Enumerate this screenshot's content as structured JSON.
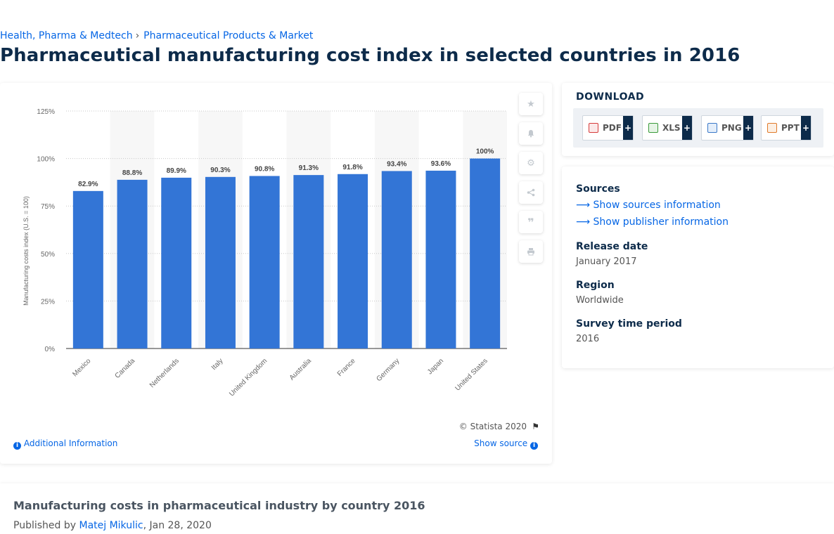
{
  "breadcrumb": {
    "items": [
      "Health, Pharma & Medtech",
      "Pharmaceutical Products & Market"
    ],
    "separator": "›"
  },
  "page_title": "Pharmaceutical manufacturing cost index in selected countries in 2016",
  "chart_data": {
    "type": "bar",
    "categories": [
      "Mexico",
      "Canada",
      "Netherlands",
      "Italy",
      "United Kingdom",
      "Australia",
      "France",
      "Germany",
      "Japan",
      "United States"
    ],
    "values": [
      82.9,
      88.8,
      89.9,
      90.3,
      90.8,
      91.3,
      91.8,
      93.4,
      93.6,
      100
    ],
    "value_labels": [
      "82.9%",
      "88.8%",
      "89.9%",
      "90.3%",
      "90.8%",
      "91.3%",
      "91.8%",
      "93.4%",
      "93.6%",
      "100%"
    ],
    "ylabel": "Manufacturing costs index (U.S. = 100)",
    "ylim": [
      0,
      125
    ],
    "yticks": [
      0,
      25,
      50,
      75,
      100,
      125
    ],
    "ytick_labels": [
      "0%",
      "25%",
      "50%",
      "75%",
      "100%",
      "125%"
    ],
    "grid": true,
    "bar_color": "#3375d6"
  },
  "chart_footer": {
    "copyright": "© Statista 2020",
    "additional_info": "Additional Information",
    "show_source": "Show source"
  },
  "tools": [
    "star-icon",
    "bell-icon",
    "gear-icon",
    "share-icon",
    "quote-icon",
    "print-icon"
  ],
  "download": {
    "heading": "DOWNLOAD",
    "formats": [
      {
        "label": "PDF",
        "icon": "pdf-file-icon",
        "color": "#d63a3a"
      },
      {
        "label": "XLS",
        "icon": "xls-file-icon",
        "color": "#3a9a3a"
      },
      {
        "label": "PNG",
        "icon": "png-file-icon",
        "color": "#3a78c8"
      },
      {
        "label": "PPT",
        "icon": "ppt-file-icon",
        "color": "#e07a2a"
      }
    ],
    "plus": "+"
  },
  "meta": {
    "sources_heading": "Sources",
    "show_sources": "Show sources information",
    "show_publisher": "Show publisher information",
    "release_date_heading": "Release date",
    "release_date": "January 2017",
    "region_heading": "Region",
    "region": "Worldwide",
    "survey_heading": "Survey time period",
    "survey_period": "2016"
  },
  "bottom": {
    "title": "Manufacturing costs in pharmaceutical industry by country 2016",
    "published_prefix": "Published by",
    "author": "Matej Mikulic",
    "date": ", Jan 28, 2020"
  }
}
